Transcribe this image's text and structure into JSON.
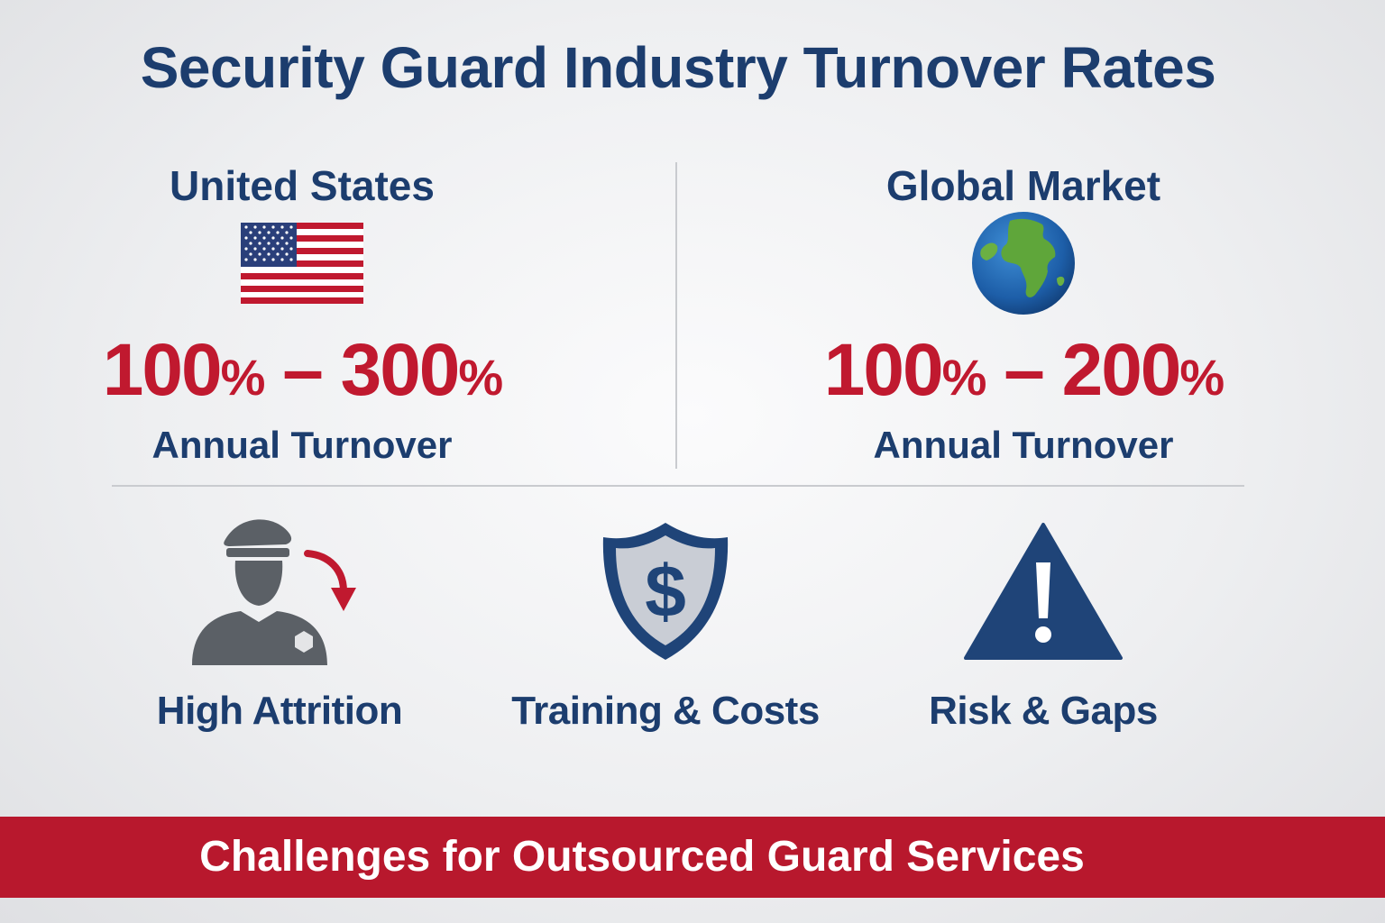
{
  "title": "Security Guard Industry Turnover Rates",
  "regions": [
    {
      "name": "United States",
      "icon": "us-flag-icon",
      "range_low": "100",
      "range_high": "300",
      "percent_sign": "%",
      "dash": "–",
      "label": "Annual Turnover"
    },
    {
      "name": "Global Market",
      "icon": "globe-icon",
      "range_low": "100",
      "range_high": "200",
      "percent_sign": "%",
      "dash": "–",
      "label": "Annual Turnover"
    }
  ],
  "challenges": [
    {
      "label": "High Attrition",
      "icon": "guard-leaving-icon"
    },
    {
      "label": "Training & Costs",
      "icon": "shield-dollar-icon"
    },
    {
      "label": "Risk & Gaps",
      "icon": "warning-triangle-icon"
    }
  ],
  "banner": {
    "text": "Challenges for Outsourced Guard Services"
  },
  "colors": {
    "navy": "#1c3d6e",
    "red": "#c0192f",
    "banner_red": "#b8182d",
    "icon_gray": "#5b6066"
  }
}
